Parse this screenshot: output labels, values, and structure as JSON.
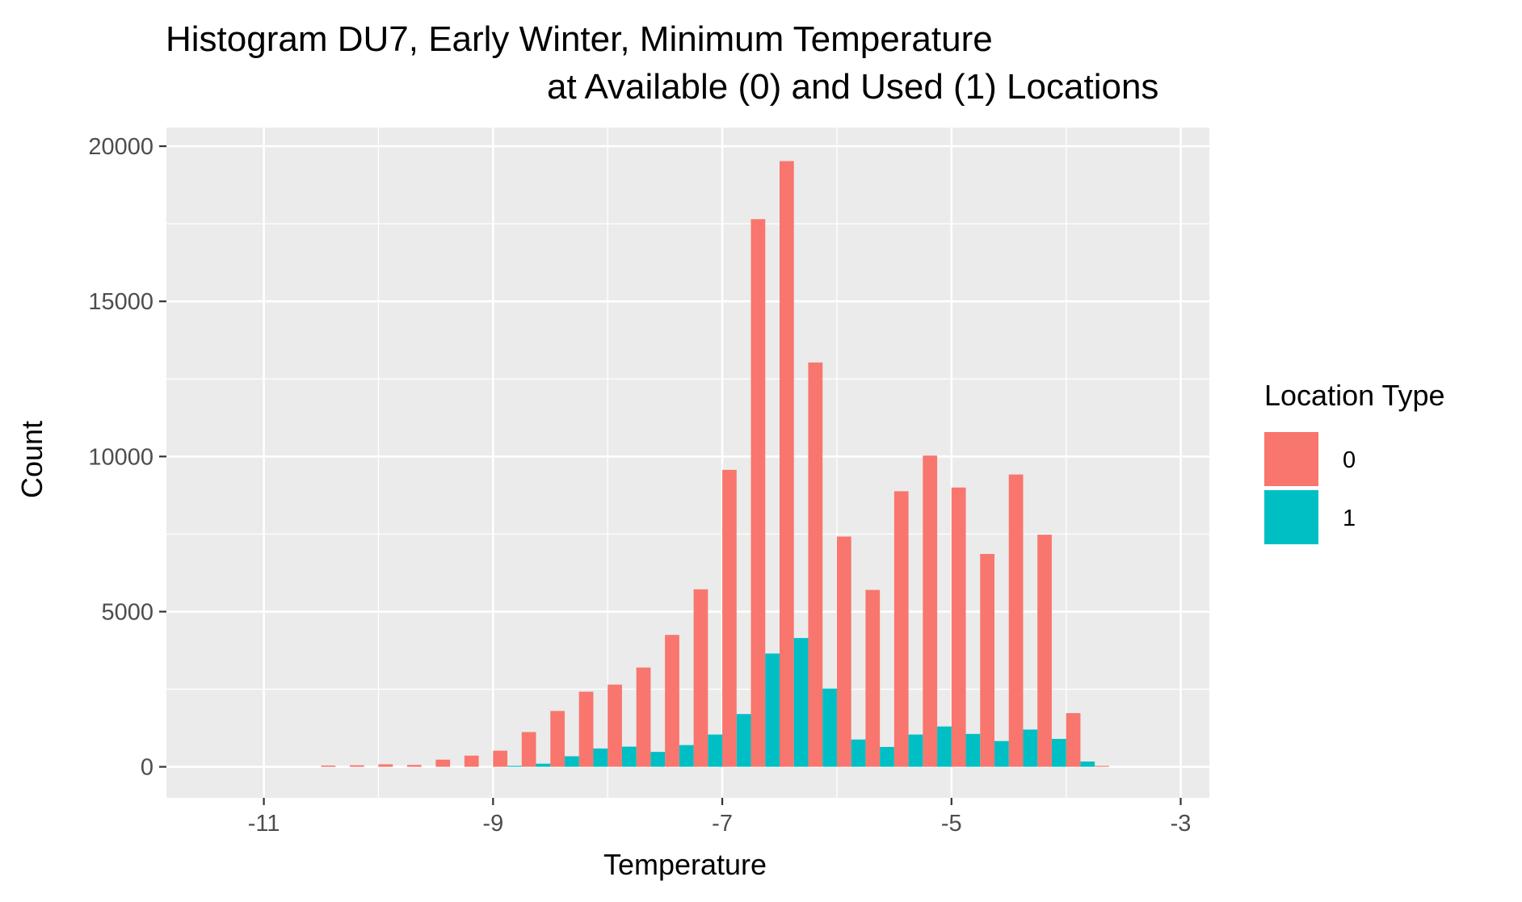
{
  "chart_data": {
    "type": "bar",
    "title_line1": "Histogram DU7, Early Winter, Minimum Temperature",
    "title_line2": "at Available (0) and Used (1) Locations",
    "xlabel": "Temperature",
    "ylabel": "Count",
    "xlim": [
      -11.85,
      -2.75
    ],
    "ylim": [
      -1000,
      20600
    ],
    "x_ticks": [
      -11,
      -9,
      -7,
      -5,
      -3
    ],
    "x_tick_labels": [
      "-11",
      "-9",
      "-7",
      "-5",
      "-3"
    ],
    "y_ticks": [
      0,
      5000,
      10000,
      15000,
      20000
    ],
    "y_tick_labels": [
      "0",
      "5000",
      "10000",
      "15000",
      "20000"
    ],
    "grid": true,
    "bin_width": 0.25,
    "bin_centers": [
      -10.375,
      -10.125,
      -9.875,
      -9.625,
      -9.375,
      -9.125,
      -8.875,
      -8.625,
      -8.375,
      -8.125,
      -7.875,
      -7.625,
      -7.375,
      -7.125,
      -6.875,
      -6.625,
      -6.375,
      -6.125,
      -5.875,
      -5.625,
      -5.375,
      -5.125,
      -4.875,
      -4.625,
      -4.375,
      -4.125,
      -3.875,
      -3.625
    ],
    "legend": {
      "title": "Location Type",
      "position": "right"
    },
    "series": [
      {
        "name": "0",
        "color": "#F8766D",
        "values": [
          40,
          50,
          80,
          60,
          230,
          360,
          520,
          1120,
          1800,
          2420,
          2650,
          3200,
          4250,
          5720,
          9570,
          17650,
          19520,
          13030,
          7420,
          5700,
          8880,
          10030,
          9000,
          6860,
          9420,
          7480,
          1730,
          30
        ]
      },
      {
        "name": "1",
        "color": "#00BFC4",
        "values": [
          0,
          0,
          0,
          0,
          0,
          0,
          30,
          100,
          340,
          590,
          650,
          480,
          700,
          1040,
          1700,
          3650,
          4150,
          2520,
          880,
          640,
          1040,
          1300,
          1060,
          830,
          1200,
          900,
          170,
          0
        ]
      }
    ]
  }
}
